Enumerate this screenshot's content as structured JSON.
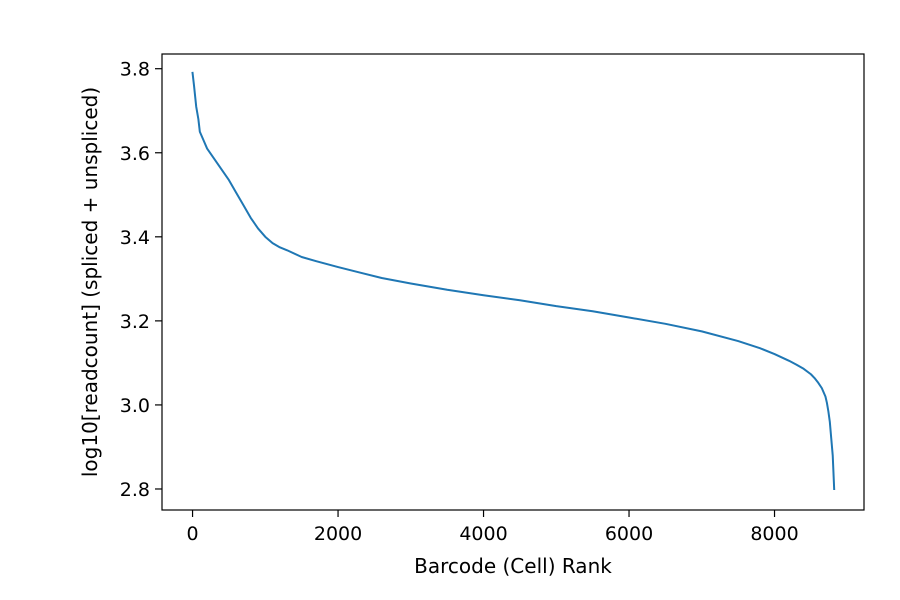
{
  "chart_data": {
    "type": "line",
    "title": "",
    "xlabel": "Barcode (Cell) Rank",
    "ylabel": "log10[readcount] (spliced + unspliced)",
    "xlim": [
      -420,
      9230
    ],
    "ylim": [
      2.75,
      3.835
    ],
    "xticks": [
      0,
      2000,
      4000,
      6000,
      8000
    ],
    "xtick_labels": [
      "0",
      "2000",
      "4000",
      "6000",
      "8000"
    ],
    "yticks": [
      2.8,
      3.0,
      3.2,
      3.4,
      3.6,
      3.8
    ],
    "ytick_labels": [
      "2.8",
      "3.0",
      "3.2",
      "3.4",
      "3.6",
      "3.8"
    ],
    "grid": false,
    "legend": false,
    "series": [
      {
        "color": "#1f77b4",
        "x": [
          0,
          20,
          50,
          80,
          100,
          150,
          200,
          300,
          400,
          500,
          600,
          700,
          800,
          900,
          1000,
          1100,
          1200,
          1300,
          1500,
          1700,
          2000,
          2300,
          2600,
          3000,
          3500,
          4000,
          4500,
          5000,
          5500,
          6000,
          6500,
          7000,
          7500,
          7800,
          8000,
          8200,
          8300,
          8400,
          8500,
          8550,
          8600,
          8650,
          8700,
          8720,
          8740,
          8760,
          8780,
          8800,
          8810,
          8820
        ],
        "y": [
          3.79,
          3.76,
          3.71,
          3.68,
          3.65,
          3.63,
          3.61,
          3.585,
          3.56,
          3.535,
          3.505,
          3.475,
          3.445,
          3.42,
          3.4,
          3.385,
          3.375,
          3.368,
          3.352,
          3.342,
          3.328,
          3.315,
          3.302,
          3.289,
          3.274,
          3.261,
          3.249,
          3.235,
          3.223,
          3.208,
          3.193,
          3.175,
          3.152,
          3.135,
          3.121,
          3.105,
          3.096,
          3.086,
          3.073,
          3.064,
          3.053,
          3.04,
          3.02,
          3.005,
          2.985,
          2.96,
          2.92,
          2.88,
          2.84,
          2.8
        ]
      }
    ]
  }
}
